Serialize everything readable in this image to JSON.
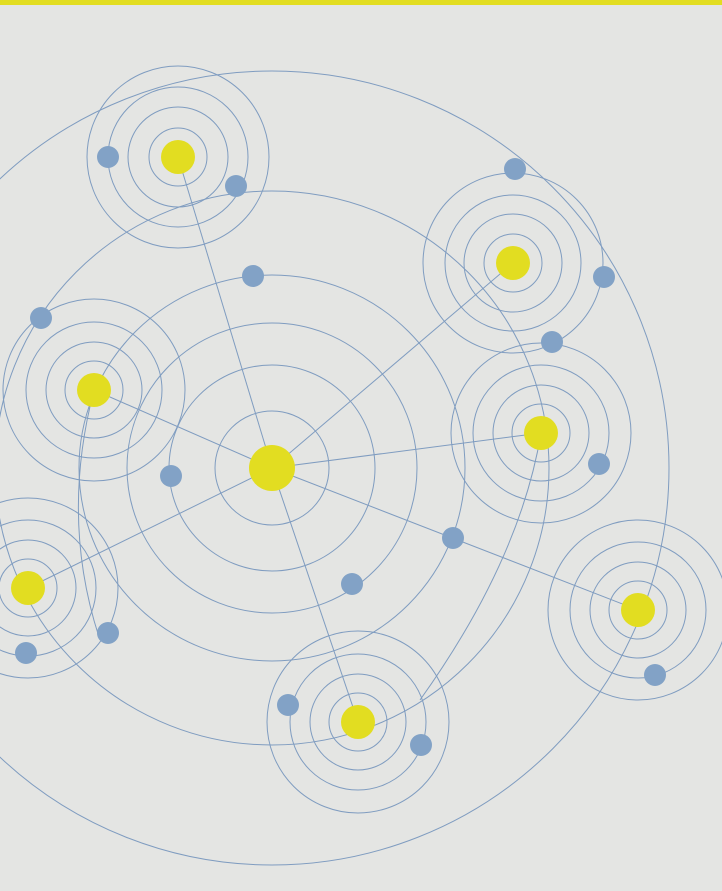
{
  "colors": {
    "background": "#e4e5e3",
    "accent_bar": "#e2dd21",
    "hub_node": "#e2dd21",
    "satellite_node": "#82a2c6",
    "line": "#7f9cc0"
  }
}
